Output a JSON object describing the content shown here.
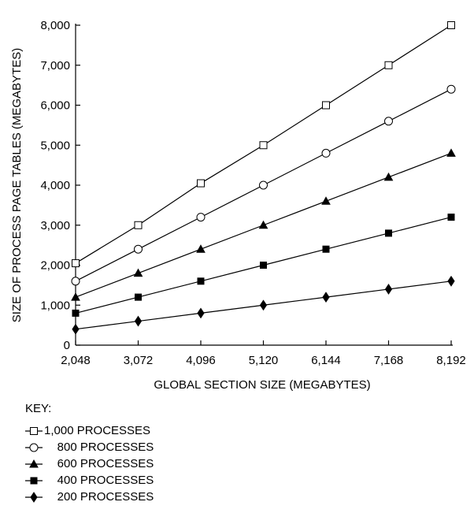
{
  "chart_data": {
    "type": "line",
    "title": "",
    "xlabel": "GLOBAL SECTION SIZE (MEGABYTES)",
    "ylabel": "SIZE OF PROCESS PAGE TABLES (MEGABYTES)",
    "x": [
      2048,
      3072,
      4096,
      5120,
      6144,
      7168,
      8192
    ],
    "x_tick_labels": [
      "2,048",
      "3,072",
      "4,096",
      "5,120",
      "6,144",
      "7,168",
      "8,192"
    ],
    "xlim": [
      2048,
      8192
    ],
    "ylim": [
      0,
      8000
    ],
    "y_ticks": [
      0,
      1000,
      2000,
      3000,
      4000,
      5000,
      6000,
      7000,
      8000
    ],
    "y_tick_labels": [
      "0",
      "1,000",
      "2,000",
      "3,000",
      "4,000",
      "5,000",
      "6,000",
      "7,000",
      "8,000"
    ],
    "grid": false,
    "legend_title": "KEY:",
    "legend_position": "bottom-left",
    "series": [
      {
        "name": "1,000 PROCESSES",
        "marker": "open-square",
        "values": [
          2048,
          3000,
          4048,
          5000,
          6000,
          7000,
          8000
        ]
      },
      {
        "name": "800 PROCESSES",
        "marker": "open-circle",
        "values": [
          1600,
          2400,
          3200,
          4000,
          4800,
          5600,
          6400
        ]
      },
      {
        "name": "600 PROCESSES",
        "marker": "filled-triangle",
        "values": [
          1200,
          1800,
          2400,
          3000,
          3600,
          4200,
          4800
        ]
      },
      {
        "name": "400 PROCESSES",
        "marker": "filled-square",
        "values": [
          800,
          1200,
          1600,
          2000,
          2400,
          2800,
          3200
        ]
      },
      {
        "name": "200 PROCESSES",
        "marker": "filled-diamond",
        "values": [
          400,
          600,
          800,
          1000,
          1200,
          1400,
          1600
        ]
      }
    ]
  }
}
